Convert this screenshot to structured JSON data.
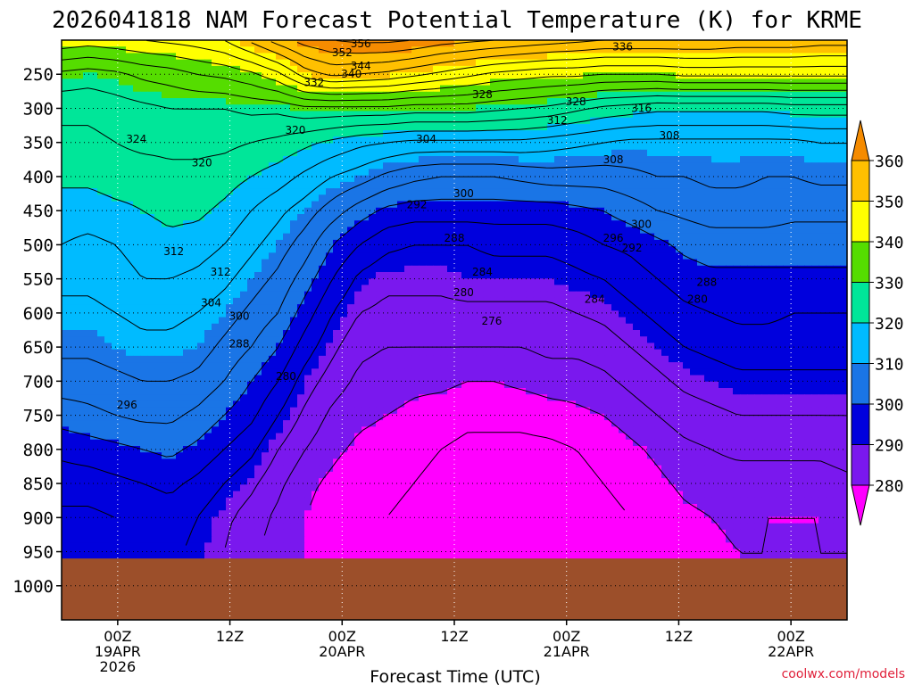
{
  "title": "2026041818 NAM Forecast Potential Temperature (K) for KRME",
  "xlabel": "Forecast Time (UTC)",
  "credit": "coolwx.com/models",
  "chart_data": {
    "type": "contour",
    "title": "2026041818 NAM Forecast Potential Temperature (K) for KRME",
    "xlabel": "Forecast Time (UTC)",
    "ylabel": "",
    "x_ticks": [
      {
        "hour": 6,
        "lines": [
          "00Z",
          "19APR",
          "2026"
        ]
      },
      {
        "hour": 18,
        "lines": [
          "12Z"
        ]
      },
      {
        "hour": 30,
        "lines": [
          "00Z",
          "20APR"
        ]
      },
      {
        "hour": 42,
        "lines": [
          "12Z"
        ]
      },
      {
        "hour": 54,
        "lines": [
          "00Z",
          "21APR"
        ]
      },
      {
        "hour": 66,
        "lines": [
          "12Z"
        ]
      },
      {
        "hour": 78,
        "lines": [
          "00Z",
          "22APR"
        ]
      }
    ],
    "xlim_hours": [
      0,
      84
    ],
    "y_ticks": [
      "250",
      "300",
      "350",
      "400",
      "450",
      "500",
      "550",
      "600",
      "650",
      "700",
      "750",
      "800",
      "850",
      "900",
      "950",
      "1000"
    ],
    "ylim": [
      200,
      1050
    ],
    "ground_level": 960,
    "colorbar": {
      "levels": [
        360,
        350,
        340,
        330,
        320,
        310,
        300,
        290,
        280
      ],
      "colors": [
        "#f58b00",
        "#ffc000",
        "#ffff00",
        "#55dd00",
        "#00e699",
        "#00bbff",
        "#1a75e6",
        "#0000dd",
        "#7a18ee",
        "#ff00ff"
      ]
    },
    "contour_labels": [
      "356",
      "352",
      "344",
      "340",
      "336",
      "332",
      "328",
      "328",
      "324",
      "320",
      "320",
      "316",
      "312",
      "312",
      "312",
      "308",
      "308",
      "304",
      "304",
      "300",
      "300",
      "300",
      "296",
      "296",
      "292",
      "292",
      "288",
      "288",
      "288",
      "284",
      "284",
      "280",
      "280",
      "280",
      "276"
    ],
    "levels_theta": [
      {
        "p": 200,
        "theta": [
          343,
          342,
          343,
          344,
          345,
          346,
          348,
          353,
          358,
          362,
          364,
          365,
          365,
          364,
          362,
          361,
          360,
          359,
          358,
          357,
          356,
          356,
          356,
          356,
          356,
          355,
          355,
          355,
          354,
          354
        ]
      },
      {
        "p": 250,
        "theta": [
          331,
          330,
          331,
          333,
          334,
          336,
          337,
          339,
          343,
          350,
          353,
          352,
          351,
          349,
          347,
          345,
          343,
          342,
          341,
          341,
          340,
          340,
          340,
          341,
          341,
          341,
          341,
          341,
          341,
          341
        ]
      },
      {
        "p": 300,
        "theta": [
          325,
          325,
          326,
          327,
          328,
          328,
          328,
          329,
          329,
          331,
          331,
          331,
          331,
          330,
          330,
          330,
          329,
          328,
          327,
          325,
          323,
          322,
          321,
          321,
          321,
          321,
          321,
          322,
          322,
          322
        ]
      },
      {
        "p": 350,
        "theta": [
          323,
          323,
          324,
          325,
          325,
          325,
          325,
          324,
          323,
          321,
          319,
          317,
          316,
          315,
          315,
          315,
          315,
          315,
          314,
          313,
          312,
          311,
          311,
          311,
          311,
          311,
          311,
          311,
          312,
          312
        ]
      },
      {
        "p": 400,
        "theta": [
          321,
          321,
          322,
          322,
          323,
          323,
          322,
          320,
          318,
          315,
          312,
          310,
          307,
          305,
          304,
          304,
          304,
          305,
          306,
          306,
          306,
          307,
          308,
          308,
          309,
          309,
          308,
          308,
          309,
          309
        ]
      },
      {
        "p": 450,
        "theta": [
          318,
          318,
          319,
          320,
          321,
          321,
          319,
          316,
          313,
          310,
          306,
          302,
          299,
          298,
          298,
          298,
          298,
          298,
          298,
          299,
          300,
          302,
          304,
          305,
          306,
          306,
          306,
          305,
          305,
          305
        ]
      },
      {
        "p": 500,
        "theta": [
          316,
          315,
          316,
          318,
          319,
          318,
          316,
          313,
          310,
          306,
          300,
          296,
          293,
          292,
          292,
          292,
          293,
          293,
          293,
          294,
          296,
          297,
          299,
          301,
          302,
          302,
          302,
          302,
          302,
          302
        ]
      },
      {
        "p": 550,
        "theta": [
          313,
          313,
          314,
          316,
          316,
          315,
          313,
          310,
          307,
          302,
          296,
          291,
          289,
          289,
          289,
          290,
          290,
          290,
          290,
          291,
          292,
          294,
          296,
          298,
          299,
          299,
          299,
          299,
          299,
          299
        ]
      },
      {
        "p": 600,
        "theta": [
          311,
          311,
          312,
          313,
          313,
          312,
          310,
          307,
          304,
          298,
          292,
          288,
          287,
          287,
          287,
          287,
          287,
          287,
          287,
          288,
          289,
          291,
          293,
          295,
          296,
          297,
          297,
          296,
          296,
          296
        ]
      },
      {
        "p": 650,
        "theta": [
          309,
          309,
          310,
          311,
          311,
          310,
          307,
          304,
          300,
          294,
          289,
          285,
          284,
          284,
          284,
          284,
          284,
          284,
          285,
          285,
          286,
          288,
          290,
          292,
          293,
          294,
          294,
          294,
          294,
          294
        ]
      },
      {
        "p": 700,
        "theta": [
          306,
          306,
          307,
          308,
          308,
          307,
          304,
          300,
          296,
          290,
          286,
          283,
          282,
          281,
          281,
          280,
          280,
          281,
          282,
          282,
          283,
          285,
          287,
          289,
          290,
          291,
          291,
          291,
          291,
          291
        ]
      },
      {
        "p": 750,
        "theta": [
          302,
          303,
          304,
          305,
          305,
          303,
          300,
          297,
          292,
          287,
          283,
          281,
          280,
          279,
          278,
          277,
          277,
          277,
          278,
          279,
          280,
          282,
          284,
          286,
          287,
          288,
          288,
          288,
          288,
          288
        ]
      },
      {
        "p": 800,
        "theta": [
          297,
          298,
          299,
          300,
          301,
          299,
          296,
          293,
          288,
          284,
          281,
          279,
          278,
          277,
          276,
          275,
          275,
          275,
          275,
          276,
          277,
          279,
          281,
          283,
          284,
          285,
          285,
          285,
          285,
          286
        ]
      },
      {
        "p": 850,
        "theta": [
          294,
          294,
          295,
          296,
          297,
          295,
          292,
          289,
          285,
          281,
          279,
          277,
          277,
          276,
          275,
          274,
          274,
          273,
          274,
          275,
          276,
          277,
          279,
          281,
          282,
          282,
          282,
          282,
          282,
          283
        ]
      },
      {
        "p": 900,
        "theta": [
          291,
          291,
          292,
          293,
          294,
          292,
          289,
          286,
          283,
          280,
          278,
          277,
          276,
          275,
          274,
          273,
          273,
          272,
          273,
          274,
          275,
          276,
          277,
          279,
          280,
          281,
          280,
          280,
          280,
          281
        ]
      },
      {
        "p": 950,
        "theta": [
          290,
          291,
          292,
          293,
          293,
          291,
          288,
          285,
          282,
          280,
          278,
          277,
          276,
          275,
          274,
          273,
          273,
          273,
          274,
          275,
          276,
          276,
          277,
          278,
          279,
          280,
          280,
          280,
          280,
          280
        ]
      }
    ]
  }
}
